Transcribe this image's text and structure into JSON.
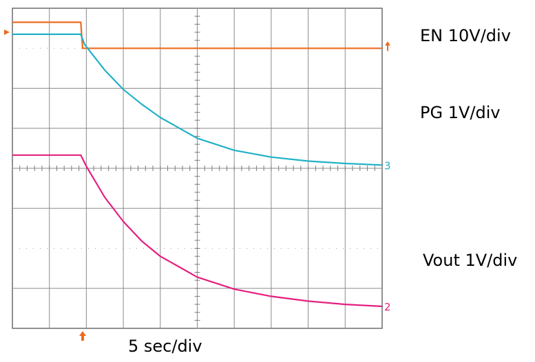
{
  "chart_data": {
    "type": "line",
    "title": "",
    "xlabel": "5 sec/div",
    "ylabel": "",
    "xlim": [
      0,
      10
    ],
    "ylim": [
      0,
      8
    ],
    "divisions": {
      "x": 10,
      "y": 8
    },
    "grid": true,
    "series": [
      {
        "name": "EN 10V/div",
        "color": "#ee6a1f",
        "marker_label": "",
        "x": [
          0,
          1.85,
          1.9,
          10
        ],
        "y": [
          7.65,
          7.65,
          7.0,
          7.0
        ]
      },
      {
        "name": "PG 1V/div",
        "color": "#21b1c7",
        "marker_label": "3",
        "x": [
          0,
          1.85,
          1.95,
          2.5,
          3,
          3.5,
          4,
          5,
          6,
          7,
          8,
          9,
          10
        ],
        "y": [
          7.35,
          7.35,
          7.1,
          6.45,
          5.97,
          5.6,
          5.27,
          4.75,
          4.45,
          4.28,
          4.18,
          4.12,
          4.08
        ]
      },
      {
        "name": "Vout 1V/div",
        "color": "#e51e7e",
        "marker_label": "2",
        "x": [
          0,
          1.85,
          2.0,
          2.5,
          3,
          3.5,
          4,
          5,
          6,
          7,
          8,
          9,
          10
        ],
        "y": [
          4.33,
          4.33,
          4.05,
          3.27,
          2.67,
          2.18,
          1.8,
          1.28,
          0.98,
          0.8,
          0.68,
          0.6,
          0.55
        ]
      }
    ],
    "trigger_x": 1.9
  }
}
